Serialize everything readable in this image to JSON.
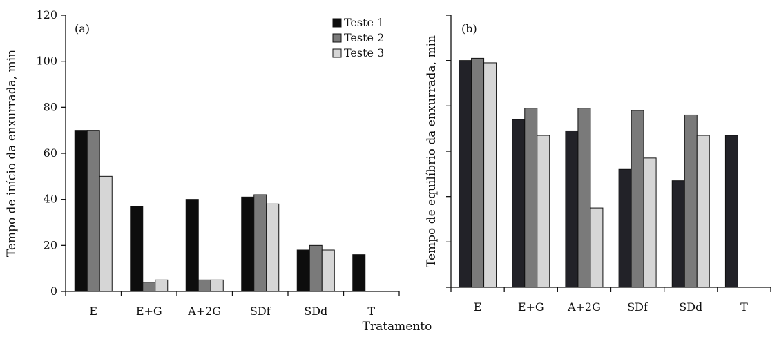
{
  "figure": {
    "xlabel": "Tratamento"
  },
  "chart_data": [
    {
      "type": "bar",
      "panel_label": "(a)",
      "ylabel": "Tempo de início da enxurrada, min",
      "xlabel": "Tratamento",
      "ylim": [
        0,
        120
      ],
      "yticks": [
        0,
        20,
        40,
        60,
        80,
        100,
        120
      ],
      "categories": [
        "E",
        "E+G",
        "A+2G",
        "SDf",
        "SDd",
        "T"
      ],
      "legend": "top-right",
      "series": [
        {
          "name": "Teste 1",
          "color": "#0d0d0d",
          "values": [
            70,
            37,
            40,
            41,
            18,
            16
          ]
        },
        {
          "name": "Teste 2",
          "color": "#7a7a7a",
          "values": [
            70,
            4,
            5,
            42,
            20,
            null
          ]
        },
        {
          "name": "Teste 3",
          "color": "#d6d6d6",
          "values": [
            50,
            5,
            5,
            38,
            18,
            null
          ]
        }
      ]
    },
    {
      "type": "bar",
      "panel_label": "(b)",
      "ylabel": "Tempo de equilíbrio da enxurrada, min",
      "xlabel": "Tratamento",
      "ylim": [
        0,
        120
      ],
      "yticks": [
        0,
        20,
        40,
        60,
        80,
        100,
        120
      ],
      "show_tick_labels": false,
      "categories": [
        "E",
        "E+G",
        "A+2G",
        "SDf",
        "SDd",
        "T"
      ],
      "series": [
        {
          "name": "Teste 1",
          "color": "#222228",
          "values": [
            100,
            74,
            69,
            52,
            47,
            67
          ]
        },
        {
          "name": "Teste 2",
          "color": "#7a7a7a",
          "values": [
            101,
            79,
            79,
            78,
            76,
            null
          ]
        },
        {
          "name": "Teste 3",
          "color": "#d6d6d6",
          "values": [
            99,
            67,
            35,
            57,
            67,
            null
          ]
        }
      ]
    }
  ]
}
